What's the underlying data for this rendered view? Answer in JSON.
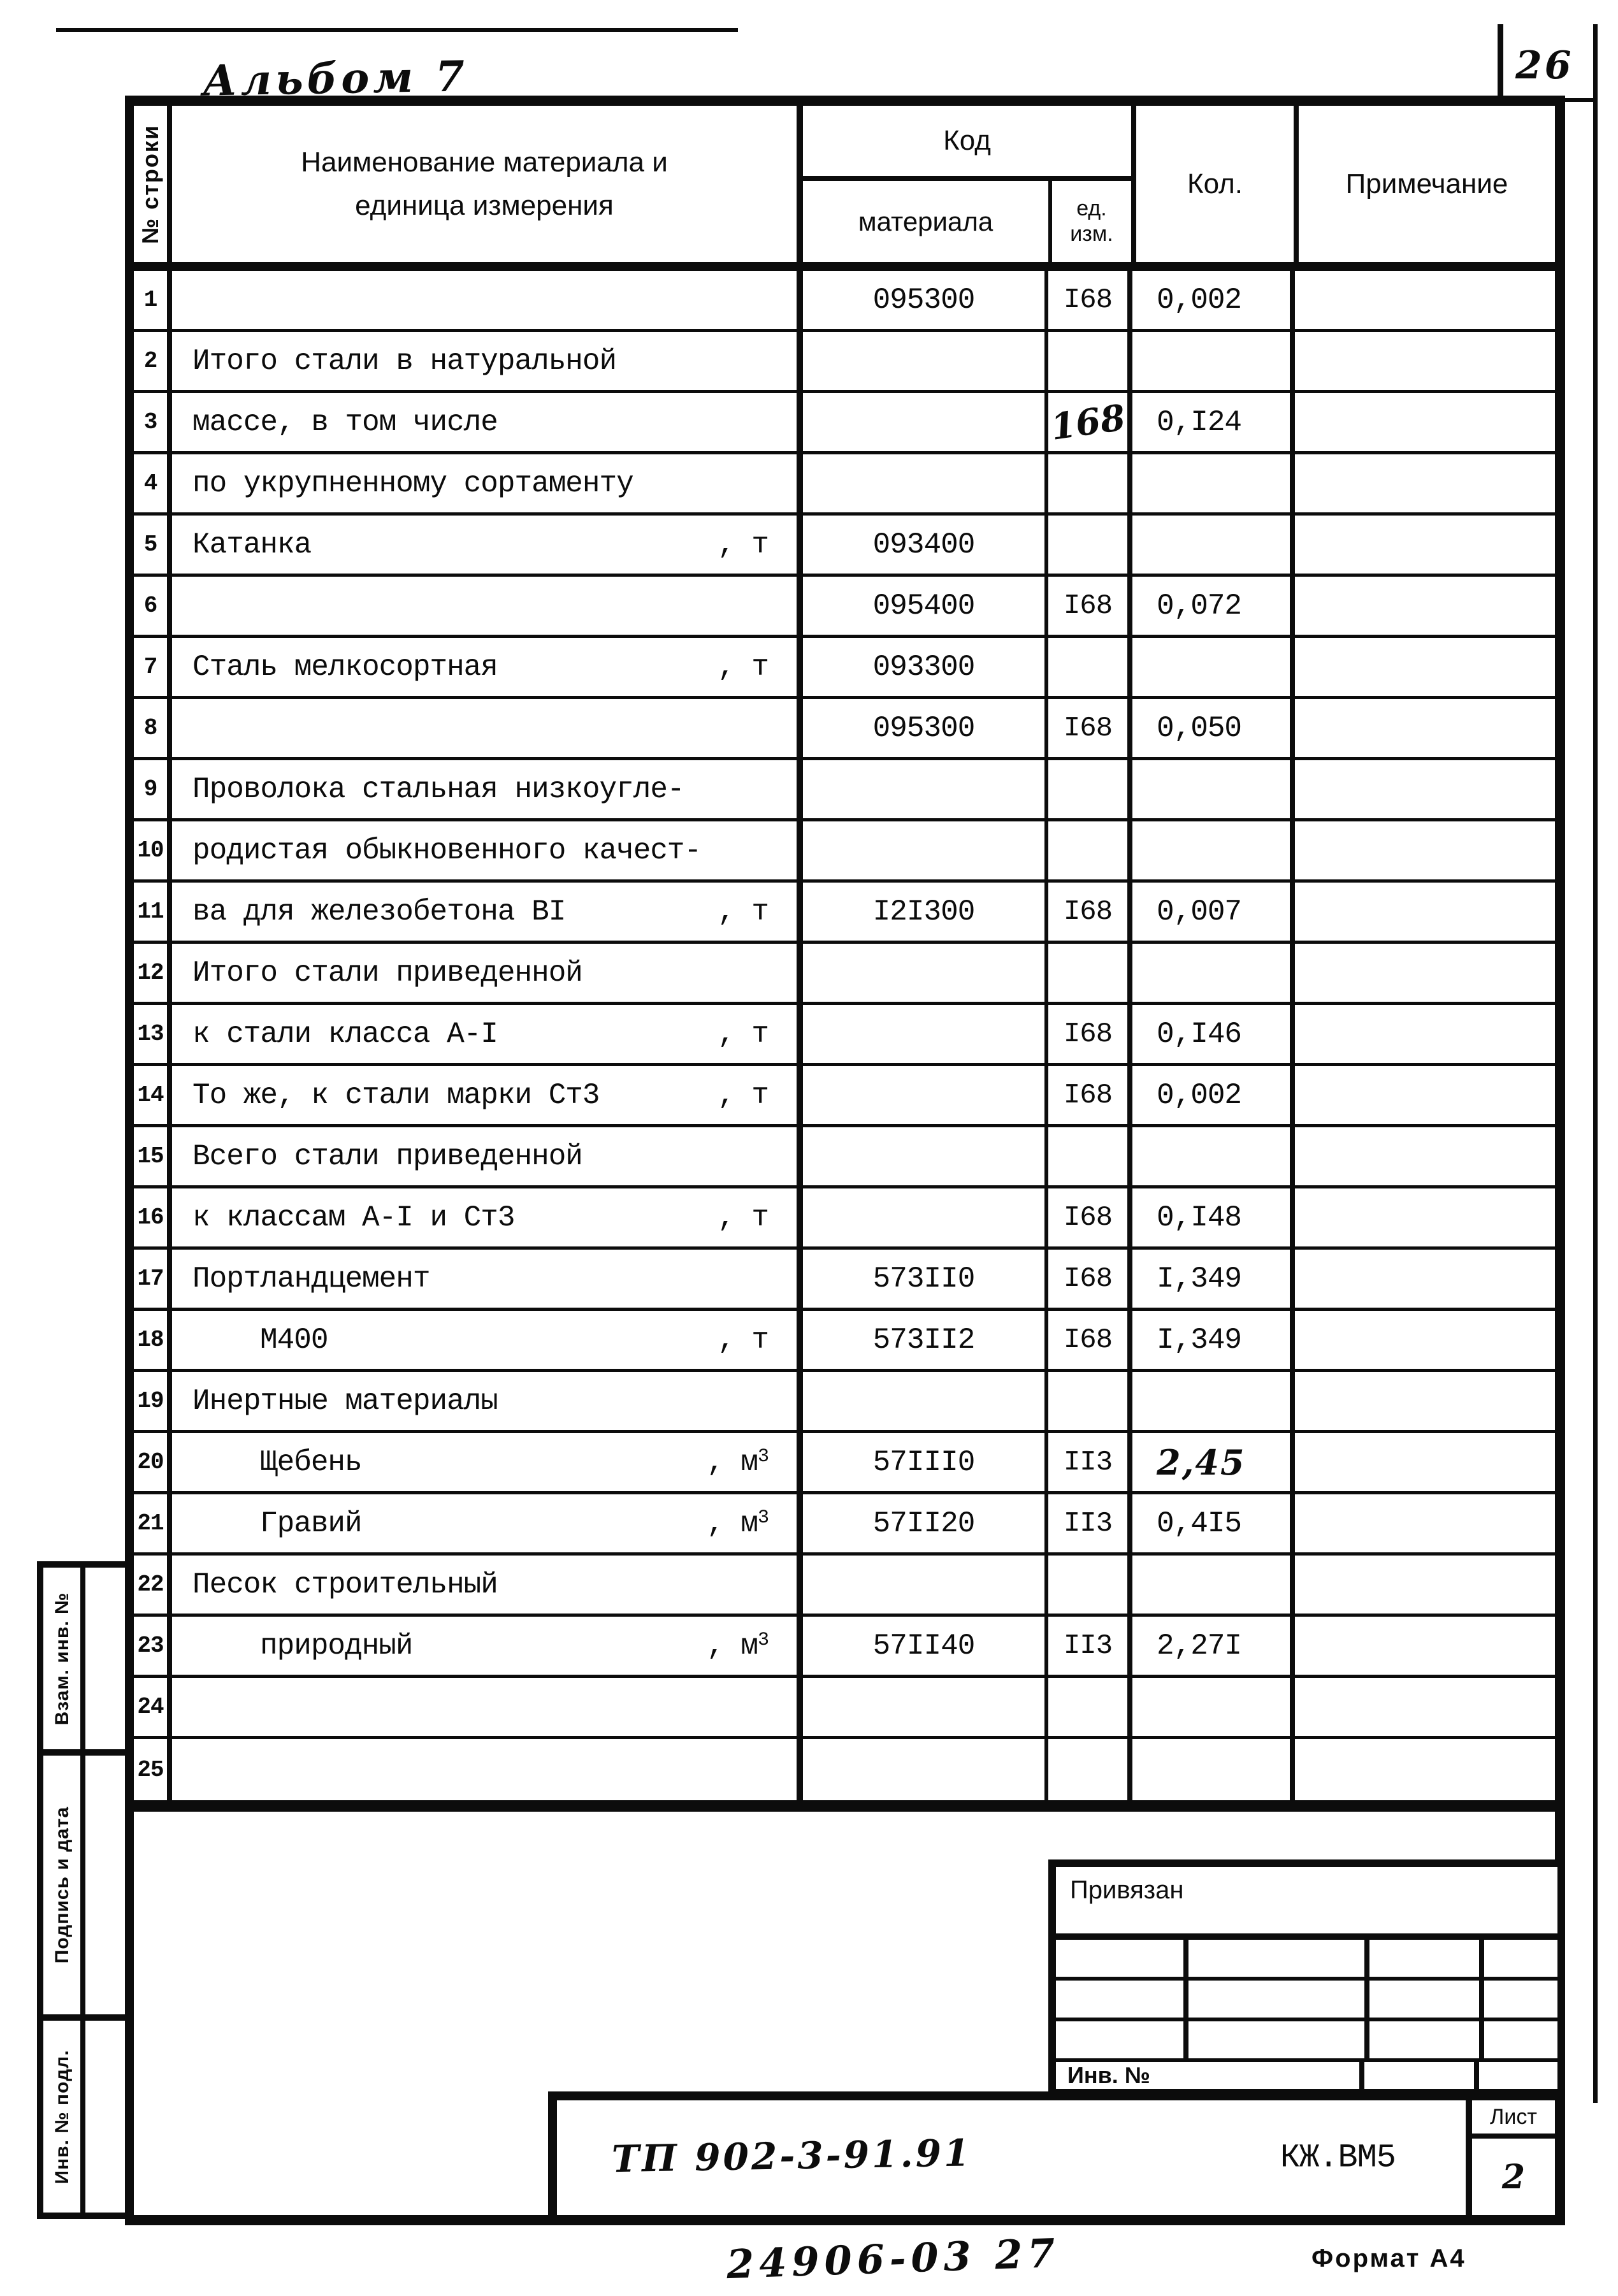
{
  "page": {
    "number": "26",
    "album": "Альбом 7",
    "footer_code": "24906-03   27",
    "format_label": "Формат А4"
  },
  "table": {
    "header": {
      "row_col": "№ строки",
      "name_line1": "Наименование материала  и",
      "name_line2": "единица измерения",
      "code": "Код",
      "code_sub": "материала",
      "unit_line1": "ед.",
      "unit_line2": "изм.",
      "qty": "Кол.",
      "note": "Примечание"
    },
    "rows": [
      {
        "num": "1",
        "name": "",
        "suffix": "",
        "sup": "",
        "code": "095300",
        "unit": "I68",
        "qty": "0,002"
      },
      {
        "num": "2",
        "name": "Итого стали в натуральной",
        "suffix": "",
        "sup": "",
        "code": "",
        "unit": "",
        "qty": ""
      },
      {
        "num": "3",
        "name": "массе, в том числе",
        "suffix": "",
        "sup": "",
        "code": "",
        "unit": "168",
        "qty": "0,I24",
        "unit_hw": true
      },
      {
        "num": "4",
        "name": "по укрупненному сортаменту",
        "suffix": "",
        "sup": "",
        "code": "",
        "unit": "",
        "qty": ""
      },
      {
        "num": "5",
        "name": "Катанка",
        "suffix": ", т",
        "sup": "",
        "code": "093400",
        "unit": "",
        "qty": ""
      },
      {
        "num": "6",
        "name": "",
        "suffix": "",
        "sup": "",
        "code": "095400",
        "unit": "I68",
        "qty": "0,072"
      },
      {
        "num": "7",
        "name": "Сталь мелкосортная",
        "suffix": ", т",
        "sup": "",
        "code": "093300",
        "unit": "",
        "qty": ""
      },
      {
        "num": "8",
        "name": "",
        "suffix": "",
        "sup": "",
        "code": "095300",
        "unit": "I68",
        "qty": "0,050"
      },
      {
        "num": "9",
        "name": "Проволока стальная низкоугле-",
        "suffix": "",
        "sup": "",
        "code": "",
        "unit": "",
        "qty": ""
      },
      {
        "num": "10",
        "name": "родистая обыкновенного качест-",
        "suffix": "",
        "sup": "",
        "code": "",
        "unit": "",
        "qty": ""
      },
      {
        "num": "11",
        "name": "ва для железобетона ВI",
        "suffix": ", т",
        "sup": "",
        "code": "I2I300",
        "unit": "I68",
        "qty": "0,007"
      },
      {
        "num": "12",
        "name": "Итого стали приведенной",
        "suffix": "",
        "sup": "",
        "code": "",
        "unit": "",
        "qty": ""
      },
      {
        "num": "13",
        "name": "к стали класса А-I",
        "suffix": ", т",
        "sup": "",
        "code": "",
        "unit": "I68",
        "qty": "0,I46"
      },
      {
        "num": "14",
        "name": "То же, к стали марки Ст3",
        "suffix": ", т",
        "sup": "",
        "code": "",
        "unit": "I68",
        "qty": "0,002"
      },
      {
        "num": "15",
        "name": "Всего стали приведенной",
        "suffix": "",
        "sup": "",
        "code": "",
        "unit": "",
        "qty": ""
      },
      {
        "num": "16",
        "name": "к классам А-I и Ст3",
        "suffix": ", т",
        "sup": "",
        "code": "",
        "unit": "I68",
        "qty": "0,I48"
      },
      {
        "num": "17",
        "name": "Портландцемент",
        "suffix": "",
        "sup": "",
        "code": "573II0",
        "unit": "I68",
        "qty": "I,349"
      },
      {
        "num": "18",
        "name": "М400",
        "suffix": ", т",
        "sup": "",
        "code": "573II2",
        "unit": "I68",
        "qty": "I,349",
        "indent": true
      },
      {
        "num": "19",
        "name": "Инертные материалы",
        "suffix": "",
        "sup": "",
        "code": "",
        "unit": "",
        "qty": ""
      },
      {
        "num": "20",
        "name": "Щебень",
        "suffix": ", м",
        "sup": "3",
        "code": "57III0",
        "unit": "II3",
        "qty": "2,45",
        "indent": true,
        "qty_hw": true
      },
      {
        "num": "21",
        "name": "Гравий",
        "suffix": ", м",
        "sup": "3",
        "code": "57II20",
        "unit": "II3",
        "qty": "0,4I5",
        "indent": true
      },
      {
        "num": "22",
        "name": "Песок строительный",
        "suffix": "",
        "sup": "",
        "code": "",
        "unit": "",
        "qty": ""
      },
      {
        "num": "23",
        "name": "природный",
        "suffix": ", м",
        "sup": "3",
        "code": "57II40",
        "unit": "II3",
        "qty": "2,27I",
        "indent": true
      },
      {
        "num": "24",
        "name": "",
        "suffix": "",
        "sup": "",
        "code": "",
        "unit": "",
        "qty": ""
      },
      {
        "num": "25",
        "name": "",
        "suffix": "",
        "sup": "",
        "code": "",
        "unit": "",
        "qty": ""
      }
    ]
  },
  "sidebar": {
    "items": [
      "Взам. инв. №",
      "Подпись и дата",
      "Инв. № подл."
    ]
  },
  "title_block": {
    "privyazan": "Привязан",
    "inv_no": "Инв. №",
    "doc_number": "ТП 902-3-91.91",
    "doc_code": "КЖ.ВМ5",
    "sheet_label": "Лист",
    "sheet_number": "2"
  }
}
